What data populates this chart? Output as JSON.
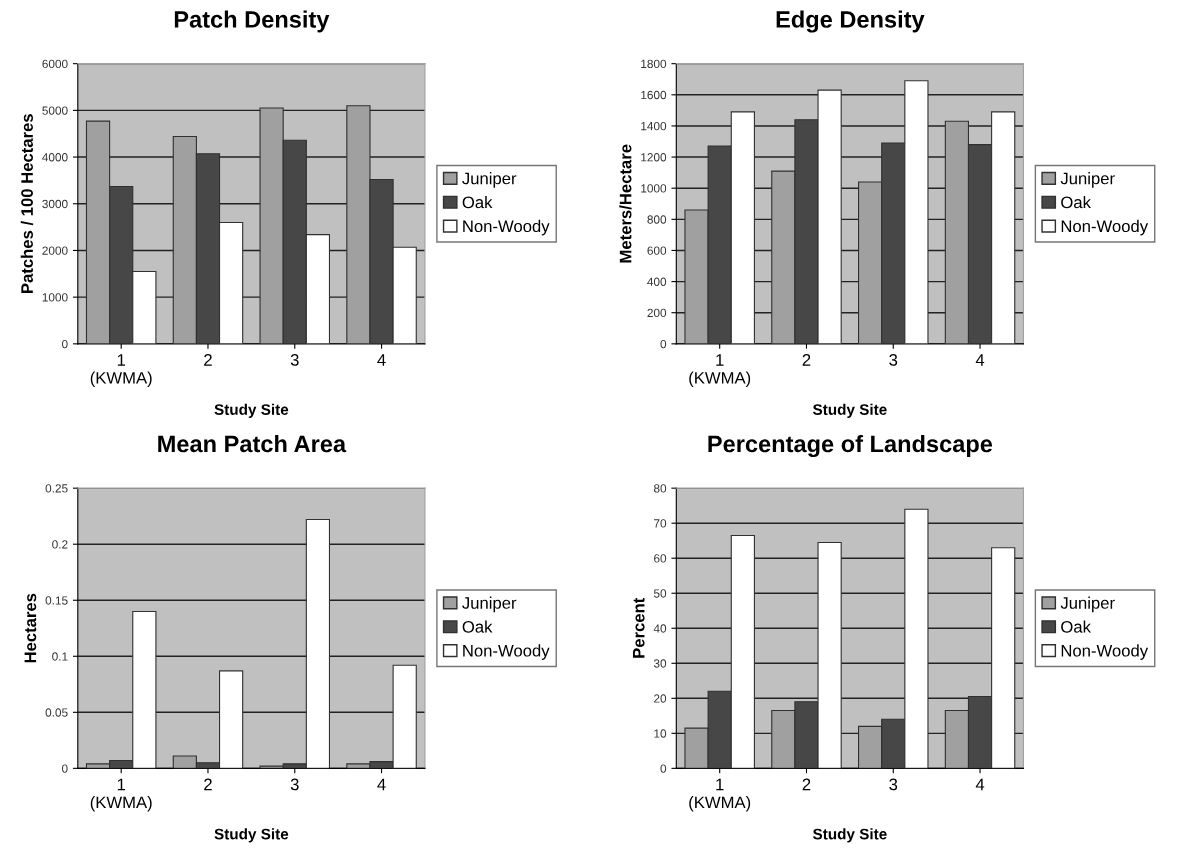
{
  "chart_data": [
    {
      "type": "bar",
      "title": "Patch Density",
      "xlabel": "Study Site",
      "ylabel": "Patches / 100 Hectares",
      "categories": [
        "1\n(KWMA)",
        "2",
        "3",
        "4"
      ],
      "series": [
        {
          "name": "Juniper",
          "color": "#a0a0a0",
          "values": [
            4770,
            4440,
            5050,
            5100
          ]
        },
        {
          "name": "Oak",
          "color": "#474747",
          "values": [
            3370,
            4070,
            4360,
            3520
          ]
        },
        {
          "name": "Non-Woody",
          "color": "#ffffff",
          "values": [
            1550,
            2600,
            2340,
            2070
          ]
        }
      ],
      "ylim": [
        0,
        6000
      ],
      "yticks": [
        0,
        1000,
        2000,
        3000,
        4000,
        5000,
        6000
      ],
      "grid": "y",
      "legend": "right"
    },
    {
      "type": "bar",
      "title": "Edge Density",
      "xlabel": "Study Site",
      "ylabel": "Meters/Hectare",
      "categories": [
        "1\n(KWMA)",
        "2",
        "3",
        "4"
      ],
      "series": [
        {
          "name": "Juniper",
          "color": "#a0a0a0",
          "values": [
            860,
            1110,
            1040,
            1430
          ]
        },
        {
          "name": "Oak",
          "color": "#474747",
          "values": [
            1270,
            1440,
            1290,
            1280
          ]
        },
        {
          "name": "Non-Woody",
          "color": "#ffffff",
          "values": [
            1490,
            1630,
            1690,
            1490
          ]
        }
      ],
      "ylim": [
        0,
        1800
      ],
      "yticks": [
        0,
        200,
        400,
        600,
        800,
        1000,
        1200,
        1400,
        1600,
        1800
      ],
      "grid": "y",
      "legend": "right"
    },
    {
      "type": "bar",
      "title": "Mean Patch Area",
      "xlabel": "Study Site",
      "ylabel": "Hectares",
      "categories": [
        "1\n(KWMA)",
        "2",
        "3",
        "4"
      ],
      "series": [
        {
          "name": "Juniper",
          "color": "#a0a0a0",
          "values": [
            0.004,
            0.011,
            0.002,
            0.004
          ]
        },
        {
          "name": "Oak",
          "color": "#474747",
          "values": [
            0.007,
            0.005,
            0.004,
            0.006
          ]
        },
        {
          "name": "Non-Woody",
          "color": "#ffffff",
          "values": [
            0.14,
            0.087,
            0.222,
            0.092
          ]
        }
      ],
      "ylim": [
        0,
        0.25
      ],
      "yticks": [
        0,
        0.05,
        0.1,
        0.15,
        0.2,
        0.25
      ],
      "grid": "y",
      "legend": "right"
    },
    {
      "type": "bar",
      "title": "Percentage of Landscape",
      "xlabel": "Study Site",
      "ylabel": "Percent",
      "categories": [
        "1\n(KWMA)",
        "2",
        "3",
        "4"
      ],
      "series": [
        {
          "name": "Juniper",
          "color": "#a0a0a0",
          "values": [
            11.5,
            16.5,
            12,
            16.5
          ]
        },
        {
          "name": "Oak",
          "color": "#474747",
          "values": [
            22,
            19,
            14,
            20.5
          ]
        },
        {
          "name": "Non-Woody",
          "color": "#ffffff",
          "values": [
            66.5,
            64.5,
            74,
            63
          ]
        }
      ],
      "ylim": [
        0,
        80
      ],
      "yticks": [
        0,
        10,
        20,
        30,
        40,
        50,
        60,
        70,
        80
      ],
      "grid": "y",
      "legend": "right"
    }
  ]
}
